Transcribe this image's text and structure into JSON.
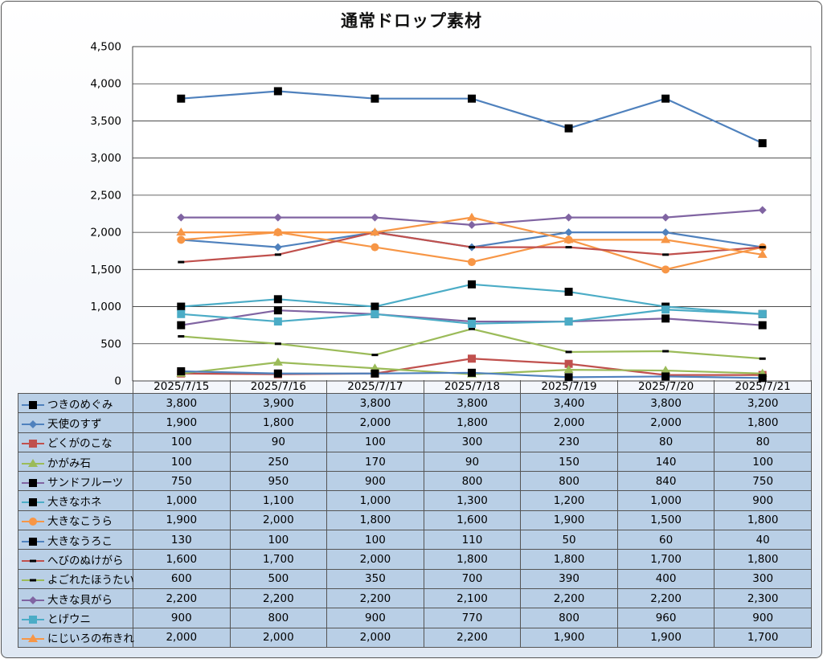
{
  "chart_data": {
    "type": "line",
    "title": "通常ドロップ素材",
    "categories": [
      "2025/7/15",
      "2025/7/16",
      "2025/7/17",
      "2025/7/18",
      "2025/7/19",
      "2025/7/20",
      "2025/7/21"
    ],
    "ylim": [
      0,
      4500
    ],
    "yticks": [
      "0",
      "500",
      "1,000",
      "1,500",
      "2,000",
      "2,500",
      "3,000",
      "3,500",
      "4,000",
      "4,500"
    ],
    "grid": true,
    "legend": "data-table",
    "series": [
      {
        "name": "つきのめぐみ",
        "values": [
          3800,
          3900,
          3800,
          3800,
          3400,
          3800,
          3200
        ],
        "labels": [
          "3,800",
          "3,900",
          "3,800",
          "3,800",
          "3,400",
          "3,800",
          "3,200"
        ],
        "color": "#4f81bd",
        "marker": "square",
        "marker_color": "#000000"
      },
      {
        "name": "天使のすず",
        "values": [
          1900,
          1800,
          2000,
          1800,
          2000,
          2000,
          1800
        ],
        "labels": [
          "1,900",
          "1,800",
          "2,000",
          "1,800",
          "2,000",
          "2,000",
          "1,800"
        ],
        "color": "#4f81bd",
        "marker": "diamond",
        "marker_color": "#4f81bd"
      },
      {
        "name": "どくがのこな",
        "values": [
          100,
          90,
          100,
          300,
          230,
          80,
          80
        ],
        "labels": [
          "100",
          "90",
          "100",
          "300",
          "230",
          "80",
          "80"
        ],
        "color": "#c0504d",
        "marker": "square",
        "marker_color": "#c0504d"
      },
      {
        "name": "かがみ石",
        "values": [
          100,
          250,
          170,
          90,
          150,
          140,
          100
        ],
        "labels": [
          "100",
          "250",
          "170",
          "90",
          "150",
          "140",
          "100"
        ],
        "color": "#9bbb59",
        "marker": "triangle",
        "marker_color": "#9bbb59"
      },
      {
        "name": "サンドフルーツ",
        "values": [
          750,
          950,
          900,
          800,
          800,
          840,
          750
        ],
        "labels": [
          "750",
          "950",
          "900",
          "800",
          "800",
          "840",
          "750"
        ],
        "color": "#8064a2",
        "marker": "square",
        "marker_color": "#000000"
      },
      {
        "name": "大きなホネ",
        "values": [
          1000,
          1100,
          1000,
          1300,
          1200,
          1000,
          900
        ],
        "labels": [
          "1,000",
          "1,100",
          "1,000",
          "1,300",
          "1,200",
          "1,000",
          "900"
        ],
        "color": "#4bacc6",
        "marker": "square",
        "marker_color": "#000000"
      },
      {
        "name": "大きなこうら",
        "values": [
          1900,
          2000,
          1800,
          1600,
          1900,
          1500,
          1800
        ],
        "labels": [
          "1,900",
          "2,000",
          "1,800",
          "1,600",
          "1,900",
          "1,500",
          "1,800"
        ],
        "color": "#f79646",
        "marker": "circle",
        "marker_color": "#f79646"
      },
      {
        "name": "大きなうろこ",
        "values": [
          130,
          100,
          100,
          110,
          50,
          60,
          40
        ],
        "labels": [
          "130",
          "100",
          "100",
          "110",
          "50",
          "60",
          "40"
        ],
        "color": "#4f81bd",
        "marker": "square",
        "marker_color": "#000000"
      },
      {
        "name": "へびのぬけがら",
        "values": [
          1600,
          1700,
          2000,
          1800,
          1800,
          1700,
          1800
        ],
        "labels": [
          "1,600",
          "1,700",
          "2,000",
          "1,800",
          "1,800",
          "1,700",
          "1,800"
        ],
        "color": "#c0504d",
        "marker": "dash",
        "marker_color": "#000000"
      },
      {
        "name": "よごれたほうたい",
        "values": [
          600,
          500,
          350,
          700,
          390,
          400,
          300
        ],
        "labels": [
          "600",
          "500",
          "350",
          "700",
          "390",
          "400",
          "300"
        ],
        "color": "#9bbb59",
        "marker": "dash",
        "marker_color": "#000000"
      },
      {
        "name": "大きな貝がら",
        "values": [
          2200,
          2200,
          2200,
          2100,
          2200,
          2200,
          2300
        ],
        "labels": [
          "2,200",
          "2,200",
          "2,200",
          "2,100",
          "2,200",
          "2,200",
          "2,300"
        ],
        "color": "#8064a2",
        "marker": "diamond",
        "marker_color": "#8064a2"
      },
      {
        "name": "とげウニ",
        "values": [
          900,
          800,
          900,
          770,
          800,
          960,
          900
        ],
        "labels": [
          "900",
          "800",
          "900",
          "770",
          "800",
          "960",
          "900"
        ],
        "color": "#4bacc6",
        "marker": "square",
        "marker_color": "#4bacc6"
      },
      {
        "name": "にじいろの布きれ",
        "values": [
          2000,
          2000,
          2000,
          2200,
          1900,
          1900,
          1700
        ],
        "labels": [
          "2,000",
          "2,000",
          "2,000",
          "2,200",
          "1,900",
          "1,900",
          "1,700"
        ],
        "color": "#f79646",
        "marker": "triangle",
        "marker_color": "#f79646"
      }
    ]
  }
}
